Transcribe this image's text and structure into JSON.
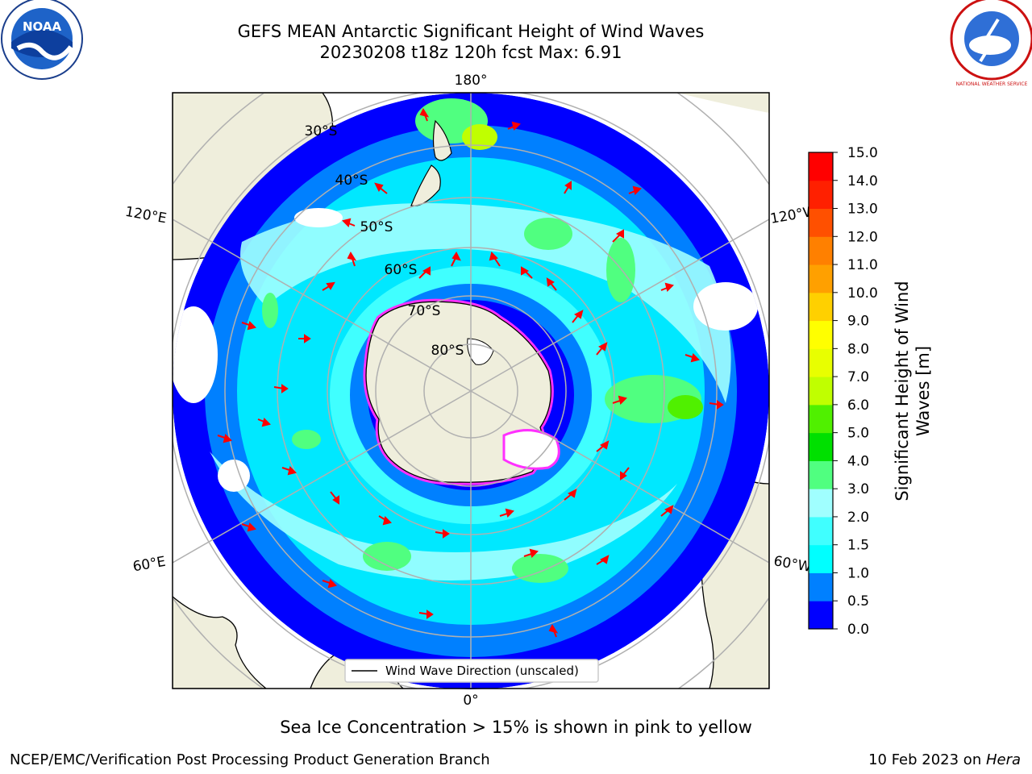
{
  "title": {
    "line1": "GEFS MEAN Antarctic Significant Height of Wind Waves",
    "line2": "20230208 t18z 120h fcst   Max: 6.91"
  },
  "map": {
    "longitude_labels": {
      "top": "180°",
      "bottom": "0°",
      "upper_left": "120°E",
      "upper_right": "120°W",
      "lower_left": "60°E",
      "lower_right": "60°W"
    },
    "latitude_labels": [
      "30°S",
      "40°S",
      "50°S",
      "60°S",
      "70°S",
      "80°S"
    ],
    "legend": "Wind Wave Direction (unscaled)"
  },
  "colorbar": {
    "label_line1": "Significant Height of Wind",
    "label_line2": "Waves [m]",
    "ticks": [
      "0.0",
      "0.5",
      "1.0",
      "1.5",
      "2.0",
      "3.0",
      "4.0",
      "5.0",
      "6.0",
      "7.0",
      "8.0",
      "9.0",
      "10.0",
      "11.0",
      "12.0",
      "13.0",
      "14.0",
      "15.0"
    ],
    "colors": [
      "#0000ff",
      "#0080ff",
      "#00ffff",
      "#40ffff",
      "#a0ffff",
      "#50ff80",
      "#00e000",
      "#50f000",
      "#c0ff00",
      "#e8ff00",
      "#ffff00",
      "#ffd000",
      "#ffa000",
      "#ff8000",
      "#ff5000",
      "#ff2000",
      "#ff0000"
    ]
  },
  "caption": "Sea Ice Concentration > 15% is shown in pink to yellow",
  "footer": {
    "left": "NCEP/EMC/Verification Post Processing Product Generation Branch",
    "right_prefix": "10 Feb 2023 on ",
    "right_host": "Hera"
  },
  "logos": {
    "left": "NOAA",
    "right": "NATIONAL WEATHER SERVICE"
  }
}
